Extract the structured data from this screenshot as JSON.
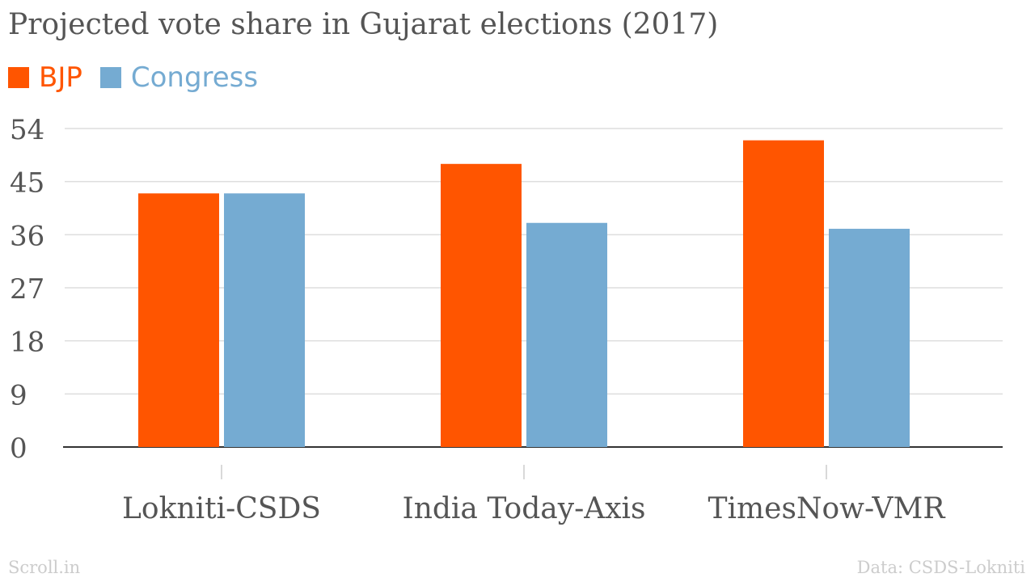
{
  "title": "Projected vote share in Gujarat elections (2017)",
  "source_left": "Scroll.in",
  "source_right": "Data: CSDS-Lokniti",
  "colors": {
    "bjp": "#ff5500",
    "congress": "#75abd2",
    "grid": "#dddddd",
    "axis": "#333333",
    "text": "#555555"
  },
  "chart_data": {
    "type": "bar",
    "title": "Projected vote share in Gujarat elections (2017)",
    "categories": [
      "Lokniti-CSDS",
      "India Today-Axis",
      "TimesNow-VMR"
    ],
    "series": [
      {
        "name": "BJP",
        "values": [
          43,
          48,
          52
        ],
        "color": "#ff5500"
      },
      {
        "name": "Congress",
        "values": [
          43,
          38,
          37
        ],
        "color": "#75abd2"
      }
    ],
    "yticks": [
      "0",
      "9",
      "18",
      "27",
      "36",
      "45",
      "54"
    ],
    "ylim": [
      0,
      54
    ],
    "grid": true,
    "legend": "top-left",
    "xlabel": "",
    "ylabel": ""
  }
}
